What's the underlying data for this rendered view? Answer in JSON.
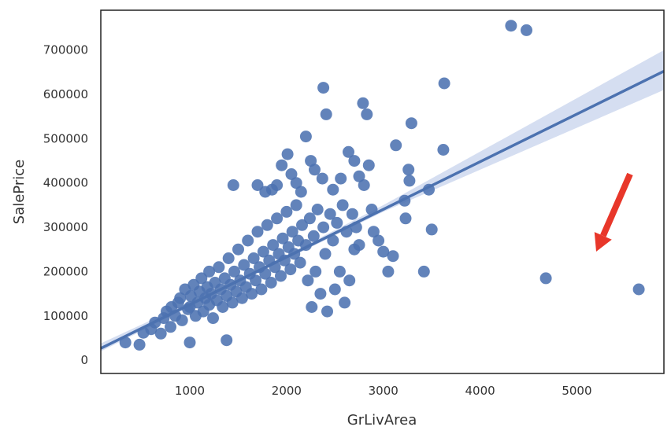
{
  "chart_data": {
    "type": "scatter",
    "xlabel": "GrLivArea",
    "ylabel": "SalePrice",
    "xlim": [
      80,
      5900
    ],
    "ylim": [
      -30000,
      790000
    ],
    "x_ticks": [
      1000,
      2000,
      3000,
      4000,
      5000
    ],
    "y_ticks": [
      0,
      100000,
      200000,
      300000,
      400000,
      500000,
      600000,
      700000
    ],
    "grid": false,
    "legend": "none",
    "regression": {
      "slope": 107.5,
      "intercept": 18000,
      "ci_low": [
        [
          80,
          20000
        ],
        [
          1500,
          175000
        ],
        [
          3000,
          335000
        ],
        [
          5900,
          610000
        ]
      ],
      "ci_high": [
        [
          80,
          38000
        ],
        [
          1500,
          181000
        ],
        [
          3000,
          350000
        ],
        [
          5900,
          700000
        ]
      ]
    },
    "annotation": {
      "type": "arrow",
      "color": "#e8372a",
      "from": [
        5550,
        420000
      ],
      "to": [
        5200,
        245000
      ]
    },
    "colors": {
      "point": "#4c72b0",
      "line": "#4c72b0",
      "ci_band": "#c7d3ec",
      "axes": "#222222"
    },
    "points": [
      [
        334,
        40000
      ],
      [
        480,
        35000
      ],
      [
        520,
        62000
      ],
      [
        600,
        70000
      ],
      [
        640,
        85000
      ],
      [
        700,
        60000
      ],
      [
        730,
        95000
      ],
      [
        760,
        110000
      ],
      [
        800,
        75000
      ],
      [
        810,
        120000
      ],
      [
        850,
        100000
      ],
      [
        880,
        130000
      ],
      [
        900,
        140000
      ],
      [
        920,
        90000
      ],
      [
        950,
        160000
      ],
      [
        980,
        115000
      ],
      [
        1000,
        40000
      ],
      [
        1000,
        120000
      ],
      [
        1010,
        145000
      ],
      [
        1040,
        170000
      ],
      [
        1060,
        100000
      ],
      [
        1080,
        130000
      ],
      [
        1100,
        155000
      ],
      [
        1120,
        185000
      ],
      [
        1140,
        110000
      ],
      [
        1160,
        140000
      ],
      [
        1180,
        165000
      ],
      [
        1200,
        125000
      ],
      [
        1200,
        200000
      ],
      [
        1220,
        150000
      ],
      [
        1240,
        95000
      ],
      [
        1260,
        175000
      ],
      [
        1280,
        135000
      ],
      [
        1300,
        210000
      ],
      [
        1320,
        160000
      ],
      [
        1340,
        120000
      ],
      [
        1360,
        185000
      ],
      [
        1380,
        45000
      ],
      [
        1380,
        145000
      ],
      [
        1400,
        230000
      ],
      [
        1420,
        170000
      ],
      [
        1440,
        130000
      ],
      [
        1460,
        200000
      ],
      [
        1480,
        155000
      ],
      [
        1500,
        250000
      ],
      [
        1520,
        180000
      ],
      [
        1540,
        140000
      ],
      [
        1560,
        215000
      ],
      [
        1580,
        165000
      ],
      [
        1600,
        270000
      ],
      [
        1620,
        195000
      ],
      [
        1640,
        150000
      ],
      [
        1660,
        230000
      ],
      [
        1680,
        180000
      ],
      [
        1700,
        290000
      ],
      [
        1720,
        210000
      ],
      [
        1740,
        160000
      ],
      [
        1760,
        245000
      ],
      [
        1780,
        195000
      ],
      [
        1800,
        305000
      ],
      [
        1820,
        225000
      ],
      [
        1840,
        175000
      ],
      [
        1860,
        260000
      ],
      [
        1880,
        210000
      ],
      [
        1900,
        320000
      ],
      [
        1920,
        240000
      ],
      [
        1940,
        190000
      ],
      [
        1960,
        275000
      ],
      [
        1980,
        225000
      ],
      [
        2000,
        335000
      ],
      [
        2020,
        255000
      ],
      [
        2040,
        205000
      ],
      [
        2060,
        290000
      ],
      [
        2080,
        240000
      ],
      [
        2100,
        350000
      ],
      [
        2120,
        270000
      ],
      [
        2140,
        220000
      ],
      [
        2160,
        305000
      ],
      [
        2200,
        260000
      ],
      [
        2220,
        180000
      ],
      [
        2240,
        320000
      ],
      [
        2260,
        120000
      ],
      [
        2280,
        280000
      ],
      [
        2300,
        200000
      ],
      [
        2320,
        340000
      ],
      [
        2350,
        150000
      ],
      [
        2380,
        300000
      ],
      [
        2400,
        240000
      ],
      [
        2420,
        110000
      ],
      [
        2450,
        330000
      ],
      [
        2480,
        270000
      ],
      [
        2500,
        160000
      ],
      [
        2520,
        310000
      ],
      [
        2550,
        200000
      ],
      [
        2580,
        350000
      ],
      [
        2600,
        130000
      ],
      [
        2620,
        290000
      ],
      [
        2650,
        180000
      ],
      [
        2680,
        330000
      ],
      [
        2700,
        250000
      ],
      [
        2720,
        300000
      ],
      [
        2750,
        260000
      ],
      [
        1450,
        395000
      ],
      [
        1700,
        395000
      ],
      [
        1780,
        380000
      ],
      [
        1850,
        385000
      ],
      [
        1900,
        395000
      ],
      [
        1950,
        440000
      ],
      [
        2010,
        465000
      ],
      [
        2050,
        420000
      ],
      [
        2100,
        400000
      ],
      [
        2150,
        380000
      ],
      [
        2200,
        505000
      ],
      [
        2250,
        450000
      ],
      [
        2290,
        430000
      ],
      [
        2370,
        410000
      ],
      [
        2380,
        615000
      ],
      [
        2410,
        555000
      ],
      [
        2480,
        385000
      ],
      [
        2560,
        410000
      ],
      [
        2640,
        470000
      ],
      [
        2700,
        450000
      ],
      [
        2750,
        415000
      ],
      [
        2800,
        395000
      ],
      [
        2850,
        440000
      ],
      [
        2790,
        580000
      ],
      [
        2830,
        555000
      ],
      [
        2900,
        290000
      ],
      [
        2880,
        340000
      ],
      [
        2950,
        270000
      ],
      [
        3000,
        245000
      ],
      [
        3050,
        200000
      ],
      [
        3100,
        235000
      ],
      [
        3130,
        485000
      ],
      [
        3220,
        360000
      ],
      [
        3230,
        320000
      ],
      [
        3260,
        430000
      ],
      [
        3270,
        405000
      ],
      [
        3290,
        535000
      ],
      [
        3420,
        200000
      ],
      [
        3470,
        385000
      ],
      [
        3500,
        295000
      ],
      [
        3620,
        475000
      ],
      [
        3630,
        625000
      ],
      [
        4320,
        755000
      ],
      [
        4480,
        745000
      ],
      [
        4680,
        185000
      ],
      [
        5640,
        160000
      ]
    ]
  }
}
